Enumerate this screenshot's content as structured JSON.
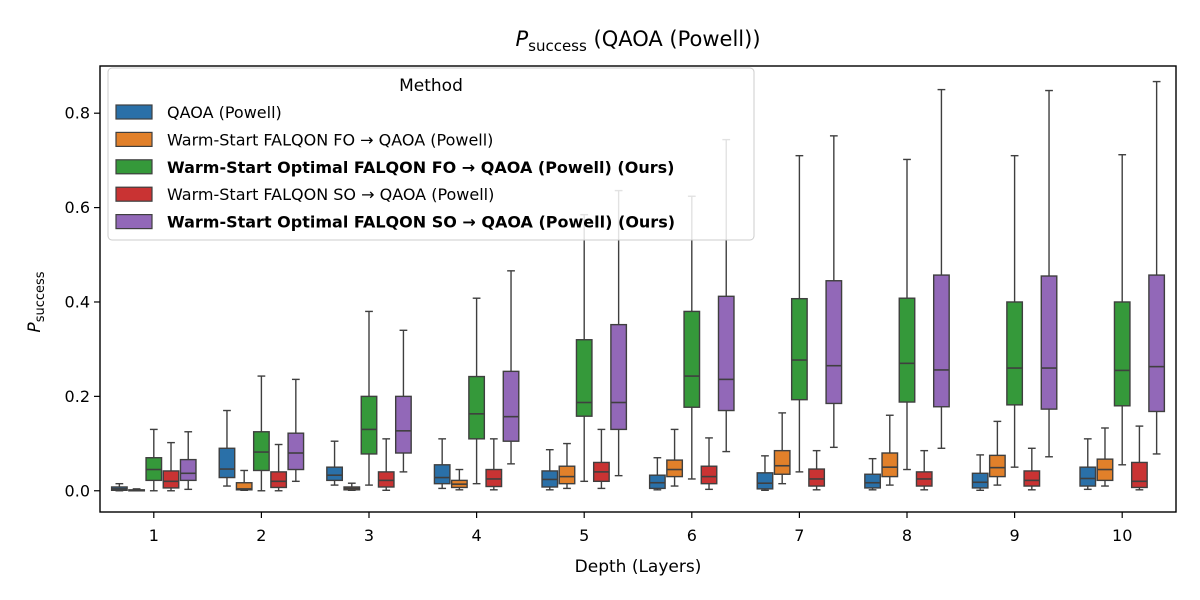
{
  "chart_data": {
    "type": "box",
    "title_symbol": "P",
    "title_subscript": "success",
    "title_suffix": "(QAOA (Powell))",
    "xlabel": "Depth (Layers)",
    "ylabel_symbol": "P",
    "ylabel_subscript": "success",
    "ylim": [
      -0.045,
      0.9
    ],
    "yticks": [
      "0.0",
      "0.2",
      "0.4",
      "0.6",
      "0.8"
    ],
    "ytick_values": [
      0.0,
      0.2,
      0.4,
      0.6,
      0.8
    ],
    "categories": [
      "1",
      "2",
      "3",
      "4",
      "5",
      "6",
      "7",
      "8",
      "9",
      "10"
    ],
    "legend": {
      "title": "Method",
      "placement": "upper-left"
    },
    "series": [
      {
        "name": "QAOA (Powell)",
        "bold": false,
        "color": "#2a70a8",
        "boxes": [
          {
            "min": 0.0,
            "q1": 0.001,
            "med": 0.004,
            "q3": 0.008,
            "max": 0.015
          },
          {
            "min": 0.01,
            "q1": 0.028,
            "med": 0.046,
            "q3": 0.09,
            "max": 0.17
          },
          {
            "min": 0.012,
            "q1": 0.022,
            "med": 0.033,
            "q3": 0.05,
            "max": 0.105
          },
          {
            "min": 0.005,
            "q1": 0.015,
            "med": 0.028,
            "q3": 0.055,
            "max": 0.11
          },
          {
            "min": 0.002,
            "q1": 0.008,
            "med": 0.024,
            "q3": 0.042,
            "max": 0.087
          },
          {
            "min": 0.002,
            "q1": 0.005,
            "med": 0.017,
            "q3": 0.033,
            "max": 0.07
          },
          {
            "min": 0.001,
            "q1": 0.004,
            "med": 0.016,
            "q3": 0.038,
            "max": 0.074
          },
          {
            "min": 0.002,
            "q1": 0.006,
            "med": 0.017,
            "q3": 0.035,
            "max": 0.068
          },
          {
            "min": 0.001,
            "q1": 0.006,
            "med": 0.018,
            "q3": 0.037,
            "max": 0.076
          },
          {
            "min": 0.003,
            "q1": 0.01,
            "med": 0.026,
            "q3": 0.05,
            "max": 0.11
          }
        ]
      },
      {
        "name": "Warm-Start FALQON FO → QAOA (Powell)",
        "bold": false,
        "color": "#e1802a",
        "boxes": [
          {
            "min": 0.0,
            "q1": 0.0005,
            "med": 0.001,
            "q3": 0.002,
            "max": 0.004
          },
          {
            "min": 0.001,
            "q1": 0.002,
            "med": 0.004,
            "q3": 0.017,
            "max": 0.043
          },
          {
            "min": 0.001,
            "q1": 0.002,
            "med": 0.005,
            "q3": 0.008,
            "max": 0.016
          },
          {
            "min": 0.002,
            "q1": 0.007,
            "med": 0.014,
            "q3": 0.022,
            "max": 0.045
          },
          {
            "min": 0.005,
            "q1": 0.015,
            "med": 0.03,
            "q3": 0.052,
            "max": 0.1
          },
          {
            "min": 0.01,
            "q1": 0.03,
            "med": 0.045,
            "q3": 0.065,
            "max": 0.13
          },
          {
            "min": 0.015,
            "q1": 0.035,
            "med": 0.053,
            "q3": 0.085,
            "max": 0.165
          },
          {
            "min": 0.012,
            "q1": 0.03,
            "med": 0.05,
            "q3": 0.08,
            "max": 0.16
          },
          {
            "min": 0.012,
            "q1": 0.03,
            "med": 0.049,
            "q3": 0.075,
            "max": 0.147
          },
          {
            "min": 0.01,
            "q1": 0.022,
            "med": 0.045,
            "q3": 0.067,
            "max": 0.133
          }
        ]
      },
      {
        "name": "Warm-Start Optimal FALQON FO → QAOA (Powell) (Ours)",
        "bold": true,
        "color": "#35993a",
        "boxes": [
          {
            "min": 0.0,
            "q1": 0.022,
            "med": 0.045,
            "q3": 0.07,
            "max": 0.13
          },
          {
            "min": 0.0,
            "q1": 0.043,
            "med": 0.082,
            "q3": 0.125,
            "max": 0.243
          },
          {
            "min": 0.012,
            "q1": 0.078,
            "med": 0.13,
            "q3": 0.2,
            "max": 0.38
          },
          {
            "min": 0.015,
            "q1": 0.11,
            "med": 0.163,
            "q3": 0.242,
            "max": 0.408
          },
          {
            "min": 0.02,
            "q1": 0.158,
            "med": 0.187,
            "q3": 0.32,
            "max": 0.585
          },
          {
            "min": 0.025,
            "q1": 0.177,
            "med": 0.243,
            "q3": 0.38,
            "max": 0.624
          },
          {
            "min": 0.04,
            "q1": 0.193,
            "med": 0.277,
            "q3": 0.407,
            "max": 0.71
          },
          {
            "min": 0.045,
            "q1": 0.188,
            "med": 0.27,
            "q3": 0.408,
            "max": 0.702
          },
          {
            "min": 0.05,
            "q1": 0.182,
            "med": 0.26,
            "q3": 0.4,
            "max": 0.71
          },
          {
            "min": 0.055,
            "q1": 0.18,
            "med": 0.255,
            "q3": 0.4,
            "max": 0.712
          }
        ]
      },
      {
        "name": "Warm-Start FALQON SO → QAOA (Powell)",
        "bold": false,
        "color": "#c93333",
        "boxes": [
          {
            "min": 0.0,
            "q1": 0.006,
            "med": 0.02,
            "q3": 0.042,
            "max": 0.102
          },
          {
            "min": 0.0,
            "q1": 0.007,
            "med": 0.02,
            "q3": 0.04,
            "max": 0.098
          },
          {
            "min": 0.001,
            "q1": 0.008,
            "med": 0.022,
            "q3": 0.04,
            "max": 0.11
          },
          {
            "min": 0.002,
            "q1": 0.009,
            "med": 0.025,
            "q3": 0.045,
            "max": 0.11
          },
          {
            "min": 0.005,
            "q1": 0.02,
            "med": 0.04,
            "q3": 0.06,
            "max": 0.13
          },
          {
            "min": 0.003,
            "q1": 0.015,
            "med": 0.03,
            "q3": 0.052,
            "max": 0.112
          },
          {
            "min": 0.002,
            "q1": 0.01,
            "med": 0.025,
            "q3": 0.046,
            "max": 0.085
          },
          {
            "min": 0.002,
            "q1": 0.01,
            "med": 0.025,
            "q3": 0.04,
            "max": 0.085
          },
          {
            "min": 0.002,
            "q1": 0.01,
            "med": 0.022,
            "q3": 0.042,
            "max": 0.09
          },
          {
            "min": 0.002,
            "q1": 0.007,
            "med": 0.02,
            "q3": 0.06,
            "max": 0.137
          }
        ]
      },
      {
        "name": "Warm-Start Optimal FALQON SO → QAOA (Powell) (Ours)",
        "bold": true,
        "color": "#9268b8",
        "boxes": [
          {
            "min": 0.003,
            "q1": 0.022,
            "med": 0.037,
            "q3": 0.066,
            "max": 0.125
          },
          {
            "min": 0.02,
            "q1": 0.045,
            "med": 0.08,
            "q3": 0.122,
            "max": 0.236
          },
          {
            "min": 0.04,
            "q1": 0.08,
            "med": 0.127,
            "q3": 0.2,
            "max": 0.34
          },
          {
            "min": 0.057,
            "q1": 0.105,
            "med": 0.157,
            "q3": 0.253,
            "max": 0.466
          },
          {
            "min": 0.032,
            "q1": 0.13,
            "med": 0.187,
            "q3": 0.352,
            "max": 0.636
          },
          {
            "min": 0.083,
            "q1": 0.17,
            "med": 0.236,
            "q3": 0.412,
            "max": 0.744
          },
          {
            "min": 0.092,
            "q1": 0.185,
            "med": 0.265,
            "q3": 0.445,
            "max": 0.752
          },
          {
            "min": 0.09,
            "q1": 0.178,
            "med": 0.256,
            "q3": 0.457,
            "max": 0.85
          },
          {
            "min": 0.072,
            "q1": 0.173,
            "med": 0.26,
            "q3": 0.455,
            "max": 0.848
          },
          {
            "min": 0.078,
            "q1": 0.168,
            "med": 0.263,
            "q3": 0.457,
            "max": 0.867
          }
        ]
      }
    ]
  }
}
